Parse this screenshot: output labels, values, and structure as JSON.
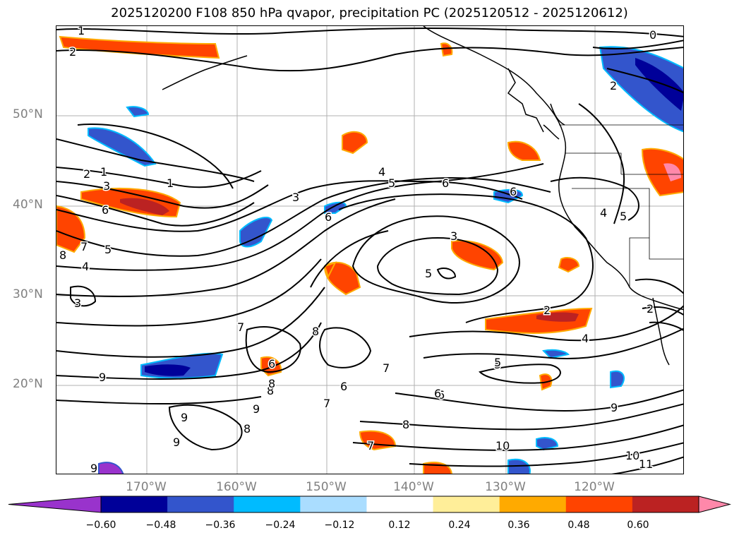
{
  "title": "2025120200 F108 850 hPa qvapor, precipitation PC (2025120512 - 2025120612)",
  "latitude_labels": [
    "50°N",
    "40°N",
    "30°N",
    "20°N"
  ],
  "longitude_labels": [
    "170°W",
    "160°W",
    "150°W",
    "140°W",
    "130°W",
    "120°W"
  ],
  "colorbar": {
    "tick_labels": [
      "−0.60",
      "−0.48",
      "−0.36",
      "−0.24",
      "−0.12",
      "0.12",
      "0.24",
      "0.36",
      "0.48",
      "0.60"
    ],
    "colors": [
      "#9933cc",
      "#000099",
      "#3355cc",
      "#00bbff",
      "#aaddff",
      "#ffffff",
      "#ffee99",
      "#ffaa00",
      "#ff4400",
      "#bb2222",
      "#ff88aa"
    ]
  },
  "contour_labels": [
    "1",
    "2",
    "1",
    "2",
    "3",
    "1",
    "6",
    "8",
    "7",
    "5",
    "4",
    "3",
    "5",
    "4",
    "6",
    "6",
    "3",
    "5",
    "6",
    "2",
    "4",
    "3",
    "7",
    "6",
    "8",
    "7",
    "5",
    "9",
    "9",
    "8",
    "6",
    "9",
    "7",
    "8",
    "6",
    "10",
    "9",
    "10",
    "11",
    "0",
    "2",
    "4",
    "5",
    "5",
    "9",
    "8",
    "6",
    "7",
    "8",
    "9",
    "2"
  ],
  "colors": {
    "contour": "#000000",
    "grid": "#b0b0b0",
    "coast": "#000000"
  }
}
